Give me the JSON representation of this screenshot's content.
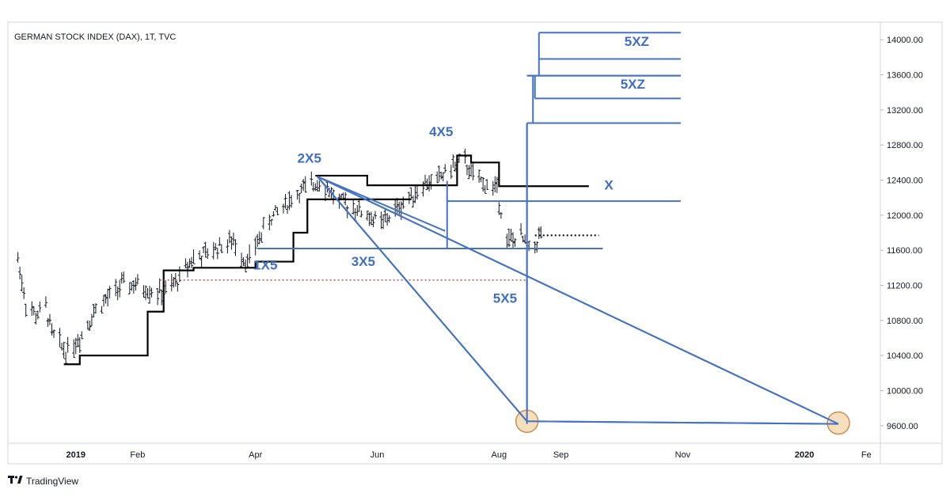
{
  "colors": {
    "price": "#131722",
    "step": "#000000",
    "annotation": "#4472c4",
    "dotted_red": "#c0504d",
    "circle_fill": "#f5d9b0",
    "circle_stroke": "#c98f55",
    "border": "#d1d4dc",
    "background": "#ffffff"
  },
  "brand": {
    "logo_icon": "tradingview-logo-icon",
    "label": "TradingView"
  },
  "chart_data": {
    "type": "ohlc",
    "title": "GERMAN STOCK INDEX (DAX), 1T, TVC",
    "x_ticks": [
      {
        "label": "2019",
        "date": "2019-01-01",
        "bold": true
      },
      {
        "label": "Feb",
        "date": "2019-02-01"
      },
      {
        "label": "Apr",
        "date": "2019-04-01"
      },
      {
        "label": "Jun",
        "date": "2019-06-01"
      },
      {
        "label": "Aug",
        "date": "2019-08-01"
      },
      {
        "label": "Sep",
        "date": "2019-09-01"
      },
      {
        "label": "Nov",
        "date": "2019-11-01"
      },
      {
        "label": "2020",
        "date": "2020-01-01",
        "bold": true
      },
      {
        "label": "Fe",
        "date": "2020-02-01"
      }
    ],
    "y_ticks": [
      9600,
      10000,
      10400,
      10800,
      11200,
      11600,
      12000,
      12400,
      12800,
      13200,
      13600,
      14000
    ],
    "y_tick_labels": [
      "9600.00",
      "10000.00",
      "10400.00",
      "10800.00",
      "11200.00",
      "11600.00",
      "12000.00",
      "12400.00",
      "12800.00",
      "13200.00",
      "13600.00",
      "14000.00"
    ],
    "xlim": [
      "2018-11-28",
      "2020-02-08"
    ],
    "ylim": [
      9400,
      14200
    ],
    "price_path": [
      [
        "2018-12-03",
        11500
      ],
      [
        "2018-12-07",
        11000
      ],
      [
        "2018-12-12",
        10850
      ],
      [
        "2018-12-17",
        10950
      ],
      [
        "2018-12-20",
        10650
      ],
      [
        "2018-12-27",
        10450
      ],
      [
        "2019-01-03",
        10600
      ],
      [
        "2019-01-10",
        10900
      ],
      [
        "2019-01-17",
        11050
      ],
      [
        "2019-01-24",
        11200
      ],
      [
        "2019-01-31",
        11200
      ],
      [
        "2019-02-07",
        11150
      ],
      [
        "2019-02-14",
        11100
      ],
      [
        "2019-02-21",
        11250
      ],
      [
        "2019-02-28",
        11500
      ],
      [
        "2019-03-07",
        11550
      ],
      [
        "2019-03-14",
        11650
      ],
      [
        "2019-03-21",
        11700
      ],
      [
        "2019-03-28",
        11450
      ],
      [
        "2019-04-02",
        11700
      ],
      [
        "2019-04-08",
        11950
      ],
      [
        "2019-04-15",
        12100
      ],
      [
        "2019-04-22",
        12250
      ],
      [
        "2019-04-30",
        12350
      ],
      [
        "2019-05-03",
        12400
      ],
      [
        "2019-05-07",
        12300
      ],
      [
        "2019-05-13",
        12150
      ],
      [
        "2019-05-20",
        12100
      ],
      [
        "2019-05-27",
        12000
      ],
      [
        "2019-06-03",
        11900
      ],
      [
        "2019-06-10",
        12050
      ],
      [
        "2019-06-17",
        12200
      ],
      [
        "2019-06-24",
        12350
      ],
      [
        "2019-07-01",
        12400
      ],
      [
        "2019-07-08",
        12550
      ],
      [
        "2019-07-15",
        12600
      ],
      [
        "2019-07-19",
        12450
      ],
      [
        "2019-07-25",
        12350
      ],
      [
        "2019-07-31",
        12300
      ],
      [
        "2019-08-05",
        11700
      ],
      [
        "2019-08-12",
        11750
      ],
      [
        "2019-08-16",
        11600
      ],
      [
        "2019-08-20",
        11700
      ],
      [
        "2019-08-22",
        11800
      ]
    ],
    "step_lines": [
      {
        "points": [
          [
            "2018-12-26",
            10300
          ],
          [
            "2019-01-03",
            10300
          ],
          [
            "2019-01-03",
            10400
          ],
          [
            "2019-02-06",
            10400
          ],
          [
            "2019-02-06",
            10900
          ],
          [
            "2019-02-14",
            10900
          ],
          [
            "2019-02-14",
            11370
          ],
          [
            "2019-03-01",
            11370
          ],
          [
            "2019-03-01",
            11400
          ],
          [
            "2019-04-01",
            11400
          ],
          [
            "2019-04-01",
            11470
          ],
          [
            "2019-04-20",
            11470
          ],
          [
            "2019-04-20",
            11800
          ],
          [
            "2019-04-27",
            11800
          ],
          [
            "2019-04-27",
            12180
          ],
          [
            "2019-06-18",
            12180
          ]
        ]
      },
      {
        "points": [
          [
            "2019-05-01",
            12450
          ],
          [
            "2019-05-27",
            12450
          ],
          [
            "2019-05-27",
            12340
          ],
          [
            "2019-07-11",
            12340
          ],
          [
            "2019-07-11",
            12680
          ],
          [
            "2019-07-18",
            12680
          ],
          [
            "2019-07-18",
            12600
          ],
          [
            "2019-08-01",
            12600
          ],
          [
            "2019-08-01",
            12330
          ],
          [
            "2019-09-15",
            12330
          ]
        ]
      }
    ],
    "annotation_lines": [
      [
        [
          "2019-04-02",
          11620
        ],
        [
          "2019-09-22",
          11620
        ]
      ],
      [
        [
          "2019-05-02",
          12440
        ],
        [
          "2019-08-15",
          9650
        ]
      ],
      [
        [
          "2019-05-02",
          12440
        ],
        [
          "2020-01-18",
          9620
        ]
      ],
      [
        [
          "2019-05-02",
          12440
        ],
        [
          "2019-07-05",
          11820
        ]
      ],
      [
        [
          "2019-07-06",
          11620
        ],
        [
          "2019-07-06",
          12390
        ]
      ],
      [
        [
          "2019-07-06",
          12160
        ],
        [
          "2019-10-31",
          12160
        ]
      ],
      [
        [
          "2019-08-15",
          13050
        ],
        [
          "2019-08-15",
          9620
        ]
      ],
      [
        [
          "2019-08-15",
          13050
        ],
        [
          "2019-10-31",
          13050
        ]
      ],
      [
        [
          "2019-08-15",
          13590
        ],
        [
          "2019-10-31",
          13590
        ]
      ],
      [
        [
          "2019-08-18",
          13590
        ],
        [
          "2019-08-18",
          13050
        ]
      ],
      [
        [
          "2019-08-19",
          13590
        ],
        [
          "2019-08-19",
          13330
        ]
      ],
      [
        [
          "2019-08-19",
          13330
        ],
        [
          "2019-10-31",
          13330
        ]
      ],
      [
        [
          "2019-08-21",
          14080
        ],
        [
          "2019-08-21",
          13590
        ]
      ],
      [
        [
          "2019-08-21",
          14080
        ],
        [
          "2019-10-31",
          14080
        ]
      ],
      [
        [
          "2019-08-21",
          13780
        ],
        [
          "2019-10-31",
          13780
        ]
      ],
      [
        [
          "2019-08-15",
          9650
        ],
        [
          "2020-01-18",
          9620
        ]
      ]
    ],
    "dotted_lines": [
      {
        "color": "red",
        "points": [
          [
            "2019-02-12",
            11260
          ],
          [
            "2019-08-15",
            11260
          ]
        ]
      },
      {
        "color": "black",
        "points": [
          [
            "2019-08-19",
            11770
          ],
          [
            "2019-09-20",
            11770
          ]
        ]
      }
    ],
    "circles": [
      [
        "2019-08-15",
        9650
      ],
      [
        "2020-01-18",
        9630
      ]
    ],
    "labels": [
      {
        "text": "2X5",
        "date": "2019-04-28",
        "value": 12600
      },
      {
        "text": "4X5",
        "date": "2019-07-03",
        "value": 12900
      },
      {
        "text": "X",
        "date": "2019-09-25",
        "value": 12290
      },
      {
        "text": "1X5",
        "date": "2019-04-06",
        "value": 11380
      },
      {
        "text": "3X5",
        "date": "2019-05-25",
        "value": 11420
      },
      {
        "text": "5X5",
        "date": "2019-08-04",
        "value": 11000
      },
      {
        "text": "5XZ",
        "date": "2019-10-09",
        "value": 13930
      },
      {
        "text": "5XZ",
        "date": "2019-10-07",
        "value": 13440
      }
    ]
  }
}
